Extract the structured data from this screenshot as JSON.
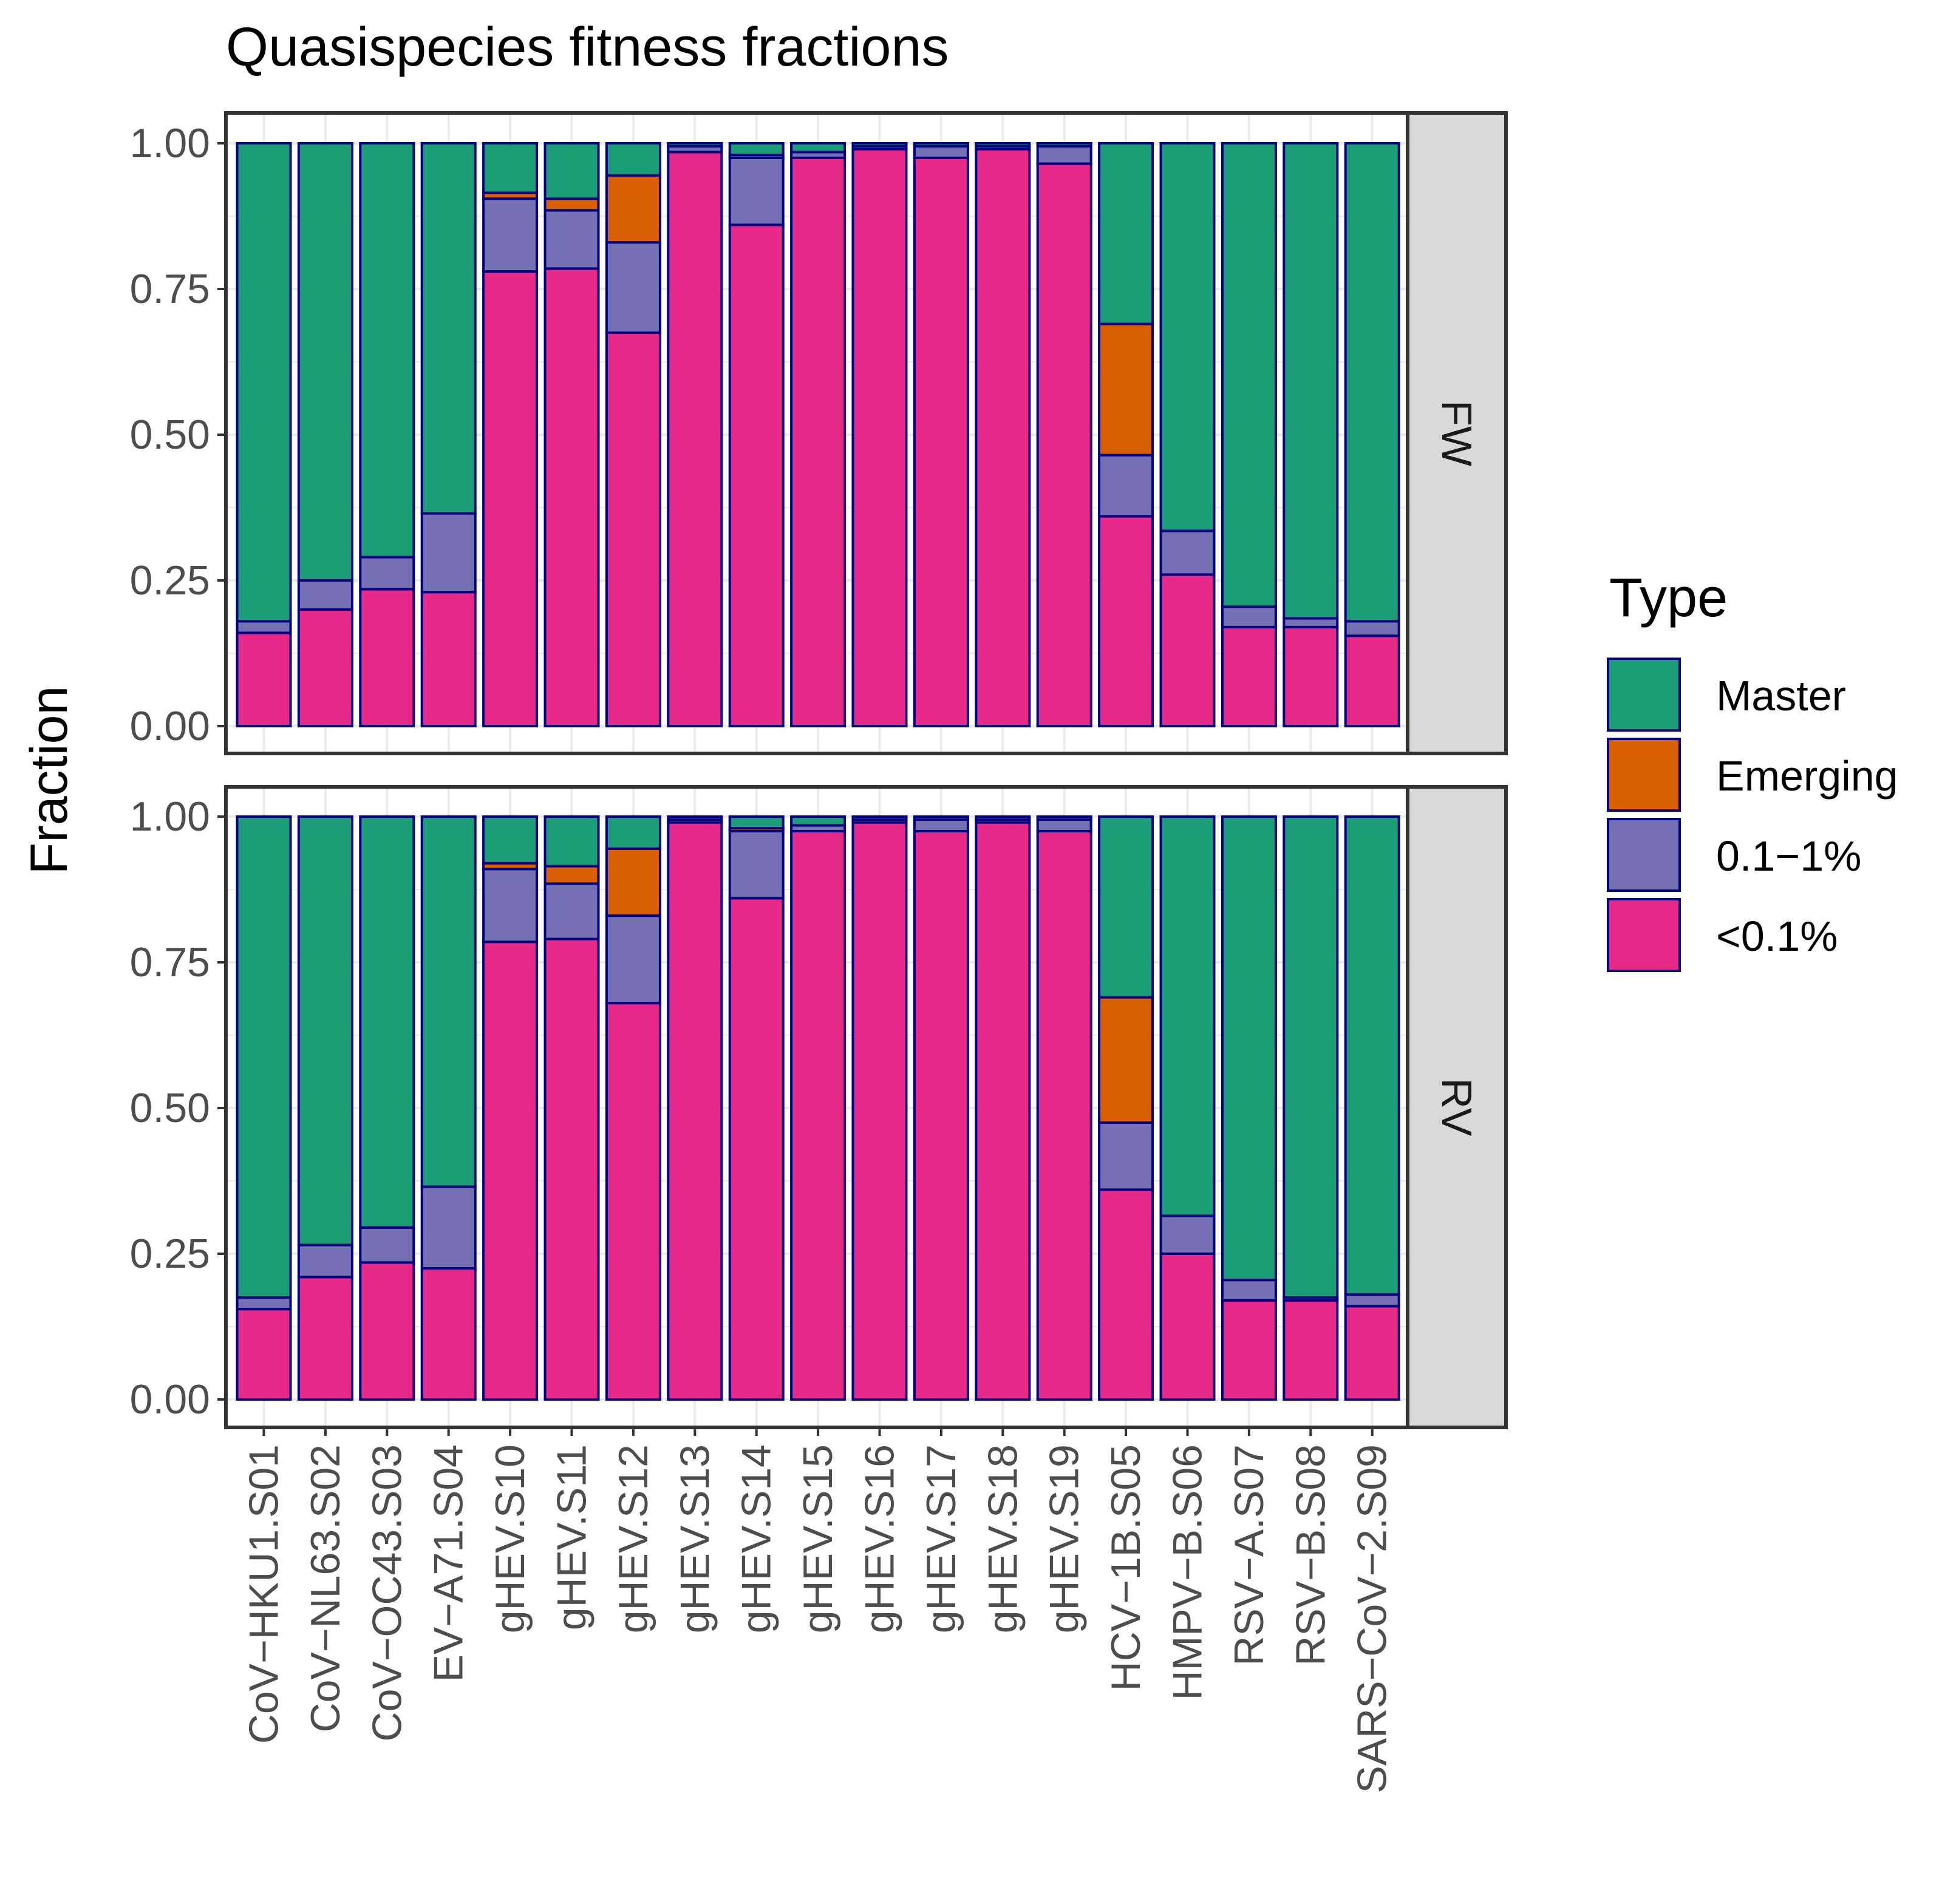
{
  "chart_data": {
    "type": "bar",
    "stacked": true,
    "title": "Quasispecies fitness fractions",
    "xlabel": "",
    "ylabel": "Fraction",
    "ylim": [
      0,
      1
    ],
    "yticks": [
      "0.00",
      "0.25",
      "0.50",
      "0.75",
      "1.00"
    ],
    "categories": [
      "CoV−HKU1.S01",
      "CoV−NL63.S02",
      "CoV−OC43.S03",
      "EV−A71.S04",
      "gHEV.S10",
      "gHEV.S11",
      "gHEV.S12",
      "gHEV.S13",
      "gHEV.S14",
      "gHEV.S15",
      "gHEV.S16",
      "gHEV.S17",
      "gHEV.S18",
      "gHEV.S19",
      "HCV−1B.S05",
      "HMPV−B.S06",
      "RSV−A.S07",
      "RSV−B.S08",
      "SARS−CoV−2.S09"
    ],
    "legend": {
      "title": "Type",
      "position": "right",
      "entries": [
        {
          "name": "Master",
          "color": "#1b9e77"
        },
        {
          "name": "Emerging",
          "color": "#d95f02"
        },
        {
          "name": "0.1−1%",
          "color": "#7570b3"
        },
        {
          "name": "<0.1%",
          "color": "#e7298a"
        }
      ]
    },
    "stack_order_bottom_to_top": [
      "<0.1%",
      "0.1−1%",
      "Emerging",
      "Master"
    ],
    "panels": [
      {
        "label": "FW",
        "series": [
          {
            "name": "<0.1%",
            "values": [
              0.16,
              0.2,
              0.235,
              0.23,
              0.78,
              0.785,
              0.675,
              0.985,
              0.86,
              0.975,
              0.99,
              0.975,
              0.99,
              0.965,
              0.36,
              0.26,
              0.17,
              0.17,
              0.155
            ]
          },
          {
            "name": "0.1−1%",
            "values": [
              0.02,
              0.05,
              0.055,
              0.135,
              0.125,
              0.1,
              0.155,
              0.01,
              0.115,
              0.01,
              0.005,
              0.02,
              0.005,
              0.03,
              0.105,
              0.075,
              0.035,
              0.015,
              0.025
            ]
          },
          {
            "name": "Emerging",
            "values": [
              0,
              0,
              0,
              0,
              0.01,
              0.02,
              0.115,
              0,
              0.005,
              0,
              0,
              0,
              0,
              0,
              0.225,
              0,
              0,
              0,
              0
            ]
          },
          {
            "name": "Master",
            "values": [
              0.82,
              0.75,
              0.71,
              0.635,
              0.085,
              0.095,
              0.055,
              0.005,
              0.02,
              0.015,
              0.005,
              0.005,
              0.005,
              0.005,
              0.31,
              0.665,
              0.795,
              0.815,
              0.82
            ]
          }
        ]
      },
      {
        "label": "RV",
        "series": [
          {
            "name": "<0.1%",
            "values": [
              0.155,
              0.21,
              0.235,
              0.225,
              0.785,
              0.79,
              0.68,
              0.99,
              0.86,
              0.975,
              0.99,
              0.975,
              0.99,
              0.975,
              0.36,
              0.25,
              0.17,
              0.17,
              0.16
            ]
          },
          {
            "name": "0.1−1%",
            "values": [
              0.02,
              0.055,
              0.06,
              0.14,
              0.125,
              0.095,
              0.15,
              0.005,
              0.115,
              0.01,
              0.005,
              0.02,
              0.005,
              0.02,
              0.115,
              0.065,
              0.035,
              0.005,
              0.02
            ]
          },
          {
            "name": "Emerging",
            "values": [
              0,
              0,
              0,
              0,
              0.01,
              0.03,
              0.115,
              0,
              0.005,
              0,
              0,
              0,
              0,
              0,
              0.215,
              0,
              0,
              0,
              0
            ]
          },
          {
            "name": "Master",
            "values": [
              0.825,
              0.735,
              0.705,
              0.635,
              0.08,
              0.085,
              0.055,
              0.005,
              0.02,
              0.015,
              0.005,
              0.005,
              0.005,
              0.005,
              0.31,
              0.685,
              0.795,
              0.825,
              0.82
            ]
          }
        ]
      }
    ]
  }
}
